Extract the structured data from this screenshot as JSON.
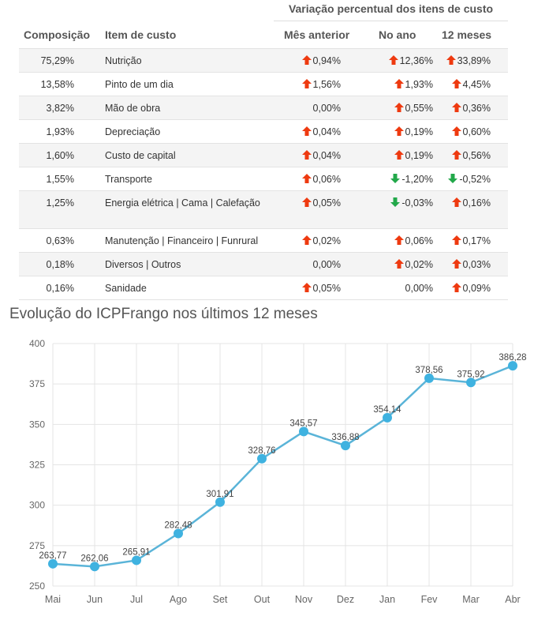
{
  "table": {
    "group_header": "Variação percentual dos itens de custo",
    "columns": [
      "Composição",
      "Item de custo",
      "Mês anterior",
      "No ano",
      "12 meses"
    ],
    "rows": [
      {
        "comp": "75,29%",
        "item": "Nutrição",
        "mes": "0,94%",
        "mes_dir": "up",
        "ano": "12,36%",
        "ano_dir": "up",
        "m12": "33,89%",
        "m12_dir": "up"
      },
      {
        "comp": "13,58%",
        "item": "Pinto de um dia",
        "mes": "1,56%",
        "mes_dir": "up",
        "ano": "1,93%",
        "ano_dir": "up",
        "m12": "4,45%",
        "m12_dir": "up"
      },
      {
        "comp": "3,82%",
        "item": "Mão de obra",
        "mes": "0,00%",
        "mes_dir": "none",
        "ano": "0,55%",
        "ano_dir": "up",
        "m12": "0,36%",
        "m12_dir": "up"
      },
      {
        "comp": "1,93%",
        "item": "Depreciação",
        "mes": "0,04%",
        "mes_dir": "up",
        "ano": "0,19%",
        "ano_dir": "up",
        "m12": "0,60%",
        "m12_dir": "up"
      },
      {
        "comp": "1,60%",
        "item": "Custo de capital",
        "mes": "0,04%",
        "mes_dir": "up",
        "ano": "0,19%",
        "ano_dir": "up",
        "m12": "0,56%",
        "m12_dir": "up"
      },
      {
        "comp": "1,55%",
        "item": "Transporte",
        "mes": "0,06%",
        "mes_dir": "up",
        "ano": "-1,20%",
        "ano_dir": "down",
        "m12": "-0,52%",
        "m12_dir": "down"
      },
      {
        "comp": "1,25%",
        "item": "Energia elétrica | Cama | Calefação",
        "mes": "0,05%",
        "mes_dir": "up",
        "ano": "-0,03%",
        "ano_dir": "down",
        "m12": "0,16%",
        "m12_dir": "up"
      },
      {
        "comp": "0,63%",
        "item": "Manutenção | Financeiro | Funrural",
        "mes": "0,02%",
        "mes_dir": "up",
        "ano": "0,06%",
        "ano_dir": "up",
        "m12": "0,17%",
        "m12_dir": "up"
      },
      {
        "comp": "0,18%",
        "item": "Diversos | Outros",
        "mes": "0,00%",
        "mes_dir": "none",
        "ano": "0,02%",
        "ano_dir": "up",
        "m12": "0,03%",
        "m12_dir": "up"
      },
      {
        "comp": "0,16%",
        "item": "Sanidade",
        "mes": "0,05%",
        "mes_dir": "up",
        "ano": "0,00%",
        "ano_dir": "none",
        "m12": "0,09%",
        "m12_dir": "up"
      }
    ]
  },
  "colors": {
    "up_arrow": "#ee3a10",
    "down_arrow": "#22a84a",
    "line": "#5ab4d8",
    "point": "#3fb2e0"
  },
  "chart_title": "Evolução do ICPFrango nos últimos 12 meses",
  "chart_data": {
    "type": "line",
    "title": "Evolução do ICPFrango nos últimos 12 meses",
    "categories": [
      "Mai",
      "Jun",
      "Jul",
      "Ago",
      "Set",
      "Out",
      "Nov",
      "Dez",
      "Jan",
      "Fev",
      "Mar",
      "Abr"
    ],
    "values": [
      263.77,
      262.06,
      265.91,
      282.48,
      301.91,
      328.76,
      345.57,
      336.88,
      354.14,
      378.56,
      375.92,
      386.28
    ],
    "value_labels": [
      "263,77",
      "262,06",
      "265,91",
      "282,48",
      "301,91",
      "328,76",
      "345,57",
      "336,88",
      "354,14",
      "378,56",
      "375,92",
      "386,28"
    ],
    "ylim": [
      250,
      400
    ],
    "yticks": [
      250,
      275,
      300,
      325,
      350,
      375,
      400
    ],
    "grid": true,
    "legend": "none"
  }
}
